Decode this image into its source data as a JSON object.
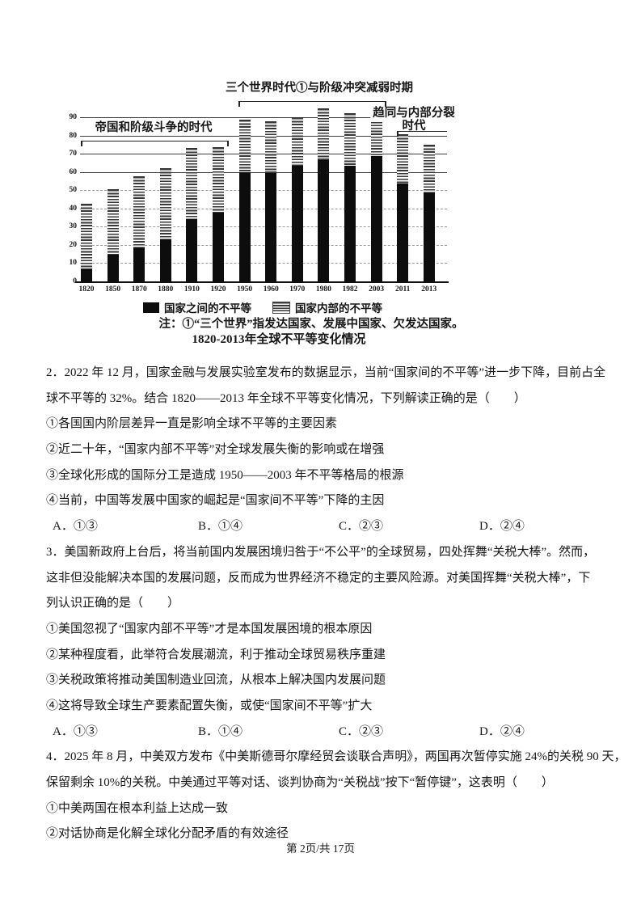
{
  "page": {
    "footer": "第 2页/共 17页"
  },
  "chart_data": {
    "type": "bar",
    "stacked": true,
    "title": "1820-2013年全球不平等变化情况",
    "note": "注：①“三个世界”指发达国家、发展中国家、欠发达国家。",
    "categories": [
      "1820",
      "1850",
      "1870",
      "1880",
      "1910",
      "1920",
      "1950",
      "1960",
      "1970",
      "1980",
      "1982",
      "2003",
      "2011",
      "2013"
    ],
    "series": [
      {
        "name": "国家之间的不平等",
        "style": "solid-black",
        "values": [
          7,
          15,
          19,
          23.5,
          34.5,
          38,
          60.5,
          60,
          64,
          67,
          64,
          69,
          54,
          49
        ]
      },
      {
        "name": "国家内部的不平等",
        "style": "horizontal-stripes",
        "values": [
          35.5,
          35.5,
          38.5,
          38.5,
          38.5,
          35.5,
          28,
          28,
          26,
          28,
          28,
          23.5,
          26.5,
          26
        ]
      }
    ],
    "ylim": [
      0,
      100
    ],
    "yticks": [
      0,
      10,
      20,
      30,
      40,
      50,
      60,
      70,
      80,
      90
    ],
    "grid": "horizontal",
    "legend_position": "bottom",
    "annotations": [
      {
        "text": "帝国和阶级斗争的时代",
        "span": [
          "1820",
          "1920"
        ]
      },
      {
        "text": "三个世界时代①与阶级冲突减弱时期",
        "span": [
          "1950",
          "2003"
        ]
      },
      {
        "text": "趋同与内部分裂时代",
        "span": [
          "2011",
          "2013"
        ]
      }
    ]
  },
  "questions": [
    {
      "lines": [
        "2．2022 年 12 月，国家金融与发展实验室发布的数据显示，当前“国家间的不平等”进一步下降，目前占全",
        "球不平等的 32%。结合 1820——2013 年全球不平等变化情况，下列解读正确的是（　　）",
        "①各国国内阶层差异一直是影响全球不平等的主要因素",
        "②近二十年，“国家内部不平等”对全球发展失衡的影响或在增强",
        "③全球化形成的国际分工是造成 1950——2003 年不平等格局的根源",
        "④当前，中国等发展中国家的崛起是“国家间不平等”下降的主因"
      ],
      "options": [
        "A．①③",
        "B．①④",
        "C．②③",
        "D．②④"
      ]
    },
    {
      "lines": [
        "3．美国新政府上台后，将当前国内发展困境归咎于“不公平”的全球贸易，四处挥舞“关税大棒”。然而，",
        "这非但没能解决本国的发展问题，反而成为世界经济不稳定的主要风险源。对美国挥舞“关税大棒”，下",
        "列认识正确的是（　　）",
        "①美国忽视了“国家内部不平等”才是本国发展困境的根本原因",
        "②某种程度看，此举符合发展潮流，利于推动全球贸易秩序重建",
        "③关税政策将推动美国制造业回流，从根本上解决国内发展问题",
        "④这将导致全球生产要素配置失衡，或使“国家间不平等”扩大"
      ],
      "options": [
        "A．①③",
        "B．①④",
        "C．②③",
        "D．②④"
      ]
    },
    {
      "lines": [
        "4．2025 年 8 月，中美双方发布《中美斯德哥尔摩经贸会谈联合声明》，两国再次暂停实施 24%的关税 90 天，",
        "保留剩余 10%的关税。中美通过平等对话、谈判协商为“关税战”按下“暂停键”，这表明（　　）",
        "①中美两国在根本利益上达成一致",
        "②对话协商是化解全球化分配矛盾的有效途径"
      ],
      "options": []
    }
  ]
}
